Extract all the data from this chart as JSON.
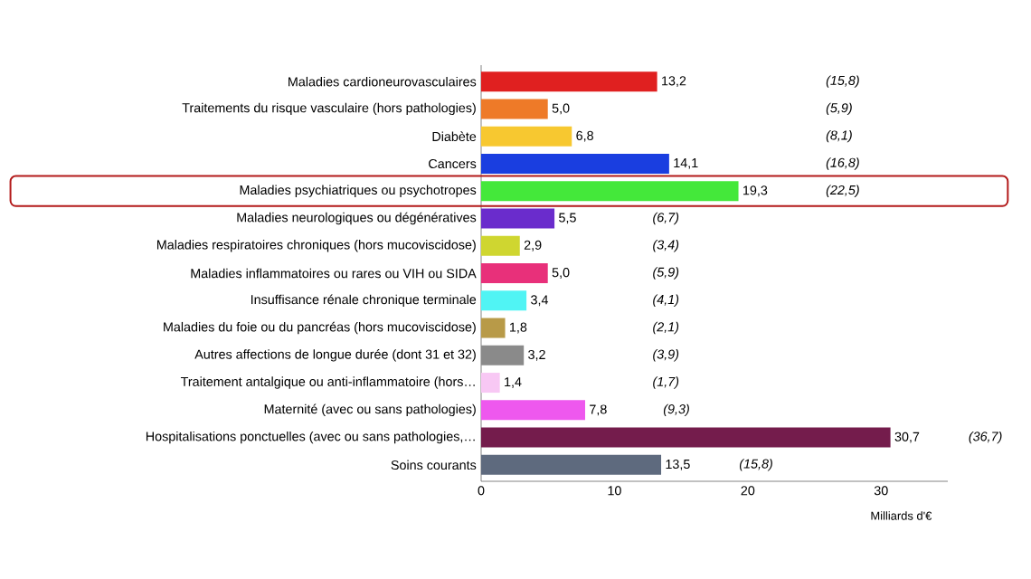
{
  "chart_data": {
    "type": "bar",
    "orientation": "horizontal",
    "xlabel": "Milliards d'€",
    "categories": [
      "Maladies cardioneurovasculaires",
      "Traitements du risque vasculaire (hors pathologies)",
      "Diabète",
      "Cancers",
      "Maladies psychiatriques ou psychotropes",
      "Maladies neurologiques ou dégénératives",
      "Maladies respiratoires chroniques (hors mucoviscidose)",
      "Maladies inflammatoires ou rares ou VIH ou SIDA",
      "Insuffisance rénale chronique terminale",
      "Maladies du foie ou du pancréas (hors mucoviscidose)",
      "Autres affections de longue durée (dont 31 et 32)",
      "Traitement antalgique ou anti-inflammatoire (hors…",
      "Maternité (avec ou sans pathologies)",
      "Hospitalisations ponctuelles (avec ou sans pathologies,…",
      "Soins courants"
    ],
    "values": [
      13.2,
      5.0,
      6.8,
      14.1,
      19.3,
      5.5,
      2.9,
      5.0,
      3.4,
      1.8,
      3.2,
      1.4,
      7.8,
      30.7,
      13.5
    ],
    "value_labels": [
      "13,2",
      "5,0",
      "6,8",
      "14,1",
      "19,3",
      "5,5",
      "2,9",
      "5,0",
      "3,4",
      "1,8",
      "3,2",
      "1,4",
      "7,8",
      "30,7",
      "13,5"
    ],
    "colors": [
      "#e02020",
      "#ee7a28",
      "#f7c830",
      "#1a3ee0",
      "#44e83a",
      "#6a2ccc",
      "#cfd630",
      "#e8307a",
      "#50f4f4",
      "#b89a48",
      "#8a8a8a",
      "#f8c8f4",
      "#ee58ee",
      "#741c4c",
      "#5e6a7e"
    ],
    "annotations": [
      "(15,8)",
      "(5,9)",
      "(8,1)",
      "(16,8)",
      "(22,5)",
      "(6,7)",
      "(3,4)",
      "(5,9)",
      "(4,1)",
      "(2,1)",
      "(3,9)",
      "(1,7)",
      "(9,3)",
      "(36,7)",
      "(15,8)"
    ],
    "xlim": [
      0,
      35
    ],
    "xticks": [
      0,
      10,
      20,
      30
    ],
    "grid": false
  }
}
